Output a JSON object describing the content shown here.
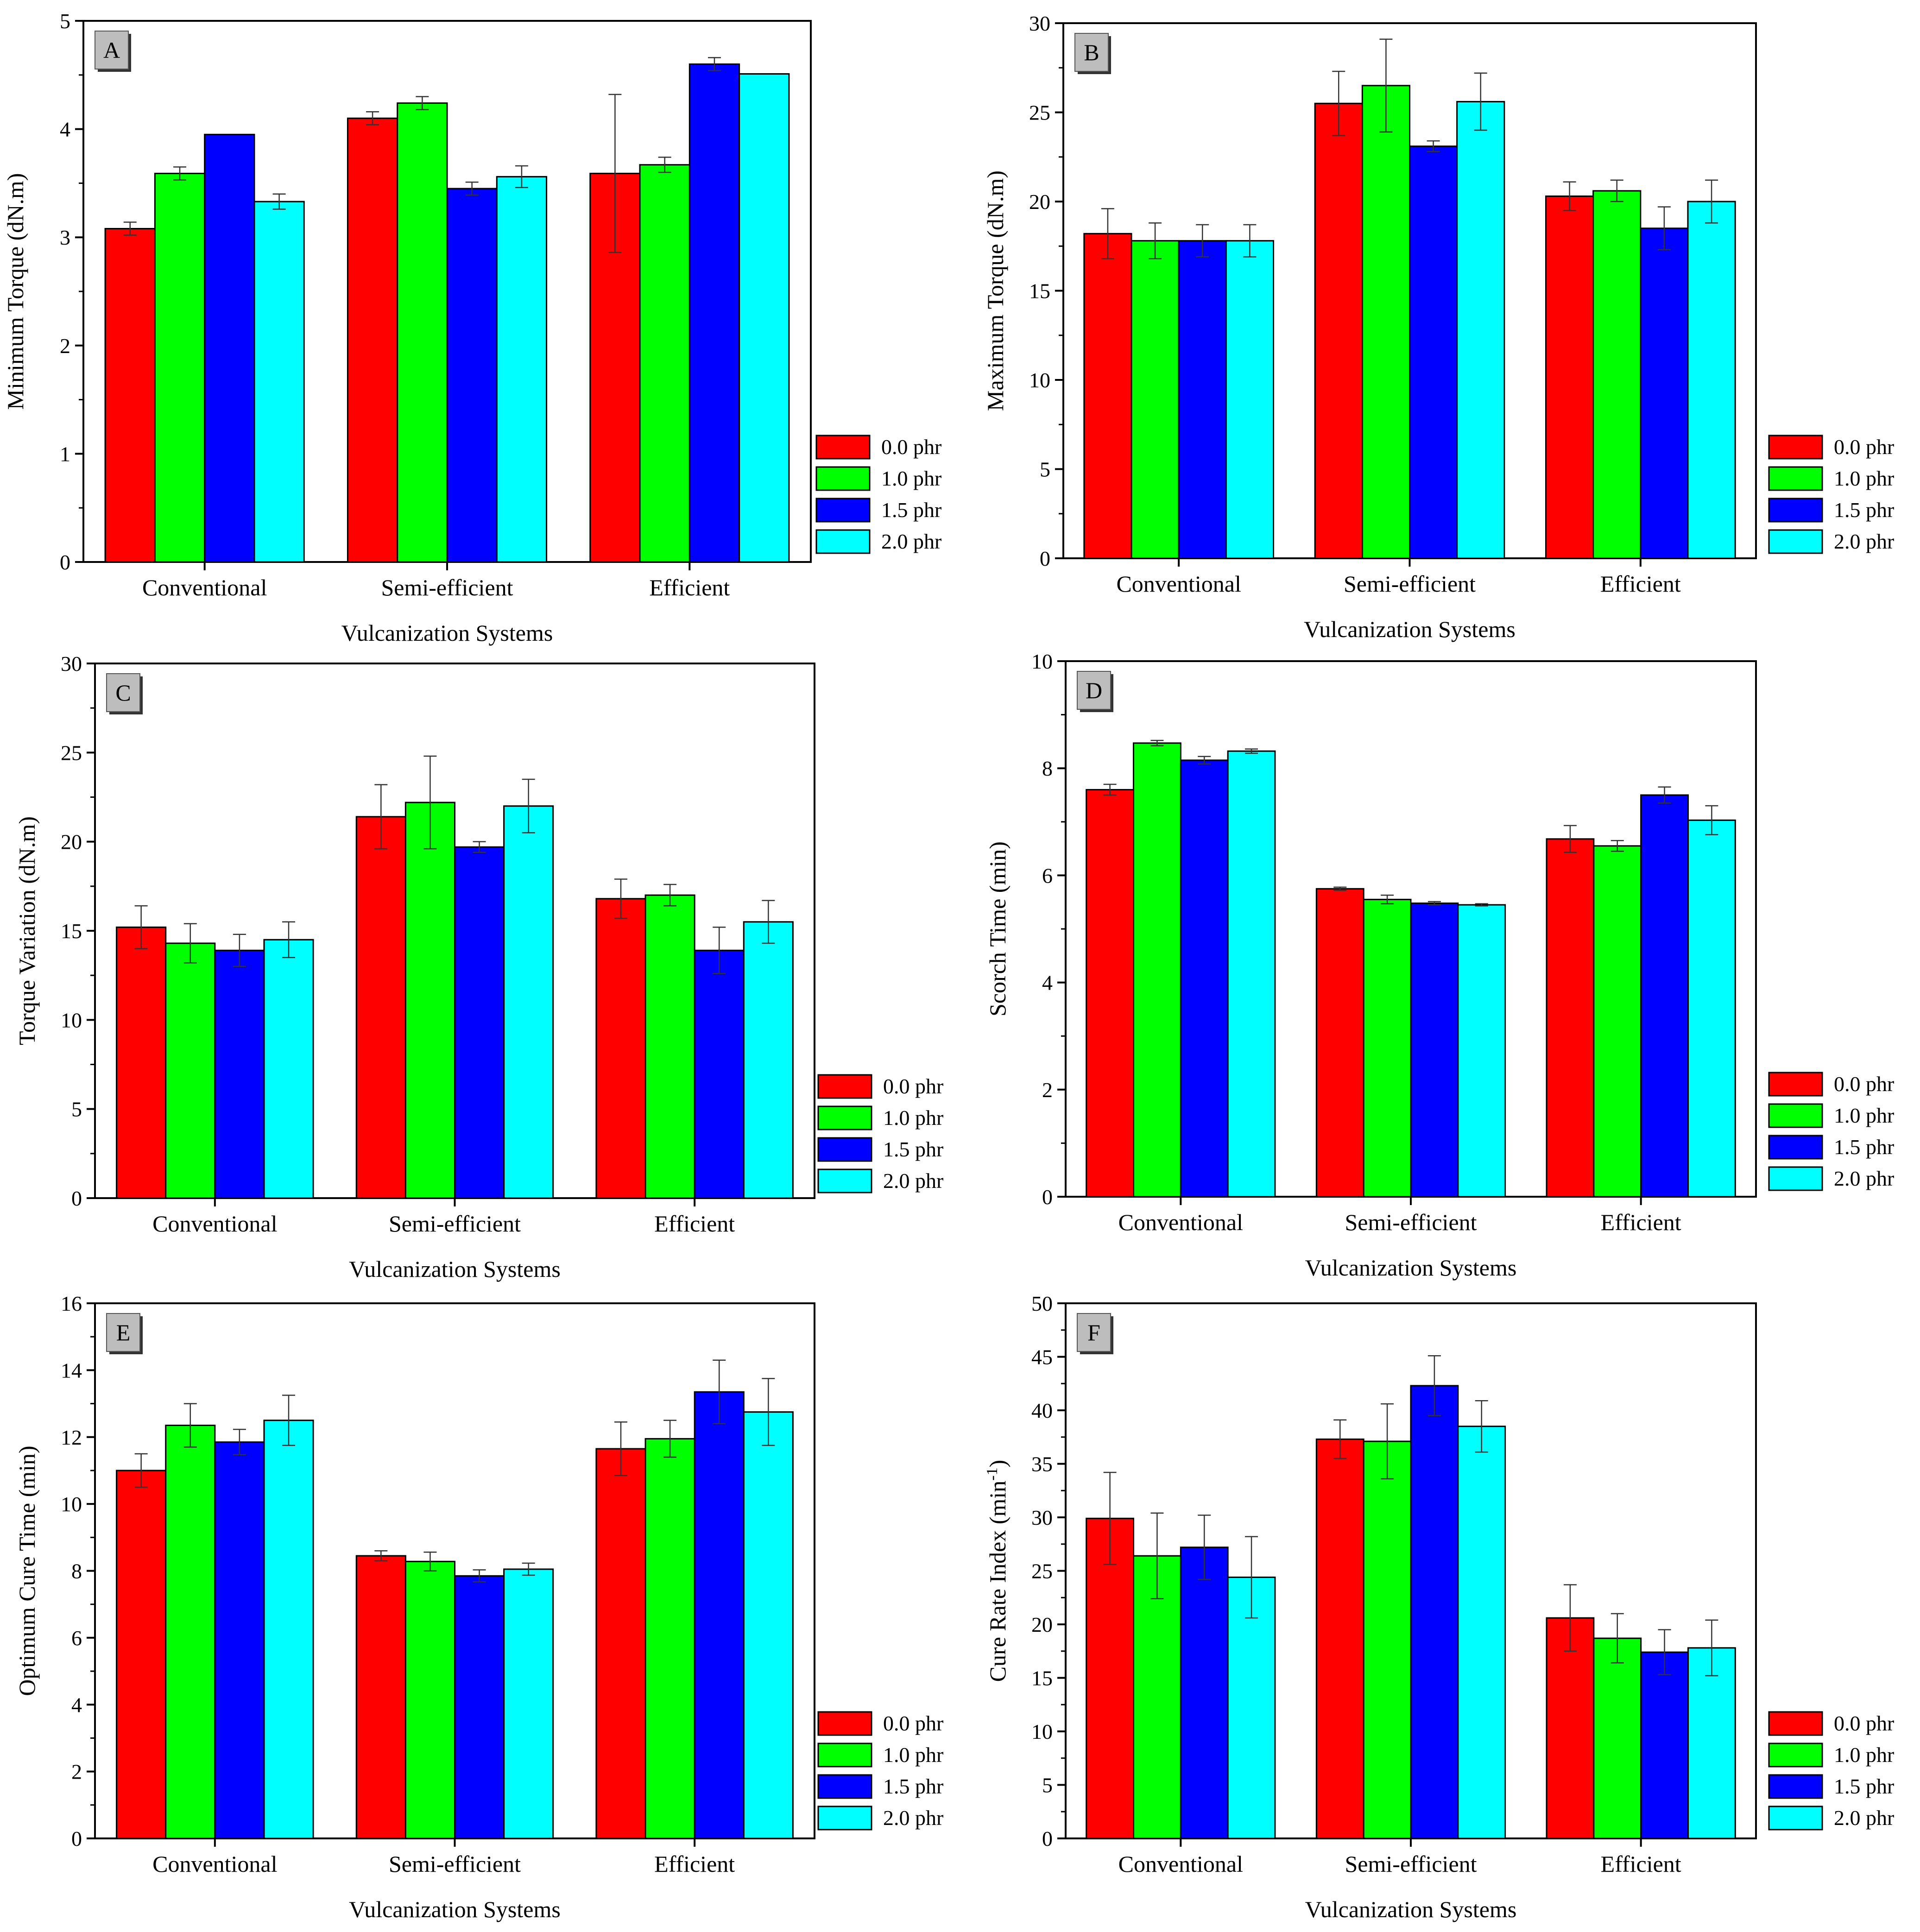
{
  "colors": {
    "0.0 phr": "#ff0000",
    "1.0 phr": "#00ff00",
    "1.5 phr": "#0000ff",
    "2.0 phr": "#00ffff"
  },
  "chart_data": [
    {
      "panel": "A",
      "type": "bar",
      "xlabel": "Vulcanization Systems",
      "ylabel": "Minimum Torque (dN.m)",
      "ylim": [
        0,
        5
      ],
      "yticks": [
        "0",
        "1",
        "2",
        "3",
        "4",
        "5"
      ],
      "categories": [
        "Conventional",
        "Semi-efficient",
        "Efficient"
      ],
      "legend": [
        "0.0 phr",
        "1.0 phr",
        "1.5 phr",
        "2.0 phr"
      ],
      "series": [
        {
          "name": "0.0 phr",
          "values": [
            3.08,
            4.1,
            3.59
          ],
          "errors": [
            0.06,
            0.06,
            0.73
          ]
        },
        {
          "name": "1.0 phr",
          "values": [
            3.59,
            4.24,
            3.67
          ],
          "errors": [
            0.06,
            0.06,
            0.07
          ]
        },
        {
          "name": "1.5 phr",
          "values": [
            3.95,
            3.45,
            4.6
          ],
          "errors": [
            0,
            0.06,
            0.06
          ]
        },
        {
          "name": "2.0 phr",
          "values": [
            3.33,
            3.56,
            4.51
          ],
          "errors": [
            0.07,
            0.1,
            0
          ]
        }
      ]
    },
    {
      "panel": "B",
      "type": "bar",
      "xlabel": "Vulcanization Systems",
      "ylabel": "Maximum Torque (dN.m)",
      "ylim": [
        0,
        30
      ],
      "yticks": [
        "0",
        "5",
        "10",
        "15",
        "20",
        "25",
        "30"
      ],
      "categories": [
        "Conventional",
        "Semi-efficient",
        "Efficient"
      ],
      "legend": [
        "0.0 phr",
        "1.0 phr",
        "1.5 phr",
        "2.0 phr"
      ],
      "series": [
        {
          "name": "0.0 phr",
          "values": [
            18.2,
            25.5,
            20.3
          ],
          "errors": [
            1.4,
            1.8,
            0.8
          ]
        },
        {
          "name": "1.0 phr",
          "values": [
            17.8,
            26.5,
            20.6
          ],
          "errors": [
            1.0,
            2.6,
            0.6
          ]
        },
        {
          "name": "1.5 phr",
          "values": [
            17.8,
            23.1,
            18.5
          ],
          "errors": [
            0.9,
            0.3,
            1.2
          ]
        },
        {
          "name": "2.0 phr",
          "values": [
            17.8,
            25.6,
            20.0
          ],
          "errors": [
            0.9,
            1.6,
            1.2
          ]
        }
      ]
    },
    {
      "panel": "C",
      "type": "bar",
      "xlabel": "Vulcanization Systems",
      "ylabel": "Torque Variation (dN.m)",
      "ylim": [
        0,
        30
      ],
      "yticks": [
        "0",
        "5",
        "10",
        "15",
        "20",
        "25",
        "30"
      ],
      "categories": [
        "Conventional",
        "Semi-efficient",
        "Efficient"
      ],
      "legend": [
        "0.0 phr",
        "1.0 phr",
        "1.5 phr",
        "2.0 phr"
      ],
      "series": [
        {
          "name": "0.0 phr",
          "values": [
            15.2,
            21.4,
            16.8
          ],
          "errors": [
            1.2,
            1.8,
            1.1
          ]
        },
        {
          "name": "1.0 phr",
          "values": [
            14.3,
            22.2,
            17.0
          ],
          "errors": [
            1.1,
            2.6,
            0.6
          ]
        },
        {
          "name": "1.5 phr",
          "values": [
            13.9,
            19.7,
            13.9
          ],
          "errors": [
            0.9,
            0.3,
            1.3
          ]
        },
        {
          "name": "2.0 phr",
          "values": [
            14.5,
            22.0,
            15.5
          ],
          "errors": [
            1.0,
            1.5,
            1.2
          ]
        }
      ]
    },
    {
      "panel": "D",
      "type": "bar",
      "xlabel": "Vulcanization Systems",
      "ylabel": "Scorch Time (min)",
      "ylim": [
        0,
        10
      ],
      "yticks": [
        "0",
        "2",
        "4",
        "6",
        "8",
        "10"
      ],
      "categories": [
        "Conventional",
        "Semi-efficient",
        "Efficient"
      ],
      "legend": [
        "0.0 phr",
        "1.0 phr",
        "1.5 phr",
        "2.0 phr"
      ],
      "series": [
        {
          "name": "0.0 phr",
          "values": [
            7.6,
            5.75,
            6.68
          ],
          "errors": [
            0.1,
            0.03,
            0.25
          ]
        },
        {
          "name": "1.0 phr",
          "values": [
            8.47,
            5.55,
            6.55
          ],
          "errors": [
            0.05,
            0.08,
            0.1
          ]
        },
        {
          "name": "1.5 phr",
          "values": [
            8.15,
            5.48,
            7.5
          ],
          "errors": [
            0.07,
            0.03,
            0.15
          ]
        },
        {
          "name": "2.0 phr",
          "values": [
            8.32,
            5.45,
            7.03
          ],
          "errors": [
            0.04,
            0.02,
            0.27
          ]
        }
      ]
    },
    {
      "panel": "E",
      "type": "bar",
      "xlabel": "Vulcanization Systems",
      "ylabel": "Optimum Cure Time (min)",
      "ylim": [
        0,
        16
      ],
      "yticks": [
        "0",
        "2",
        "4",
        "6",
        "8",
        "10",
        "12",
        "14",
        "16"
      ],
      "categories": [
        "Conventional",
        "Semi-efficient",
        "Efficient"
      ],
      "legend": [
        "0.0 phr",
        "1.0 phr",
        "1.5 phr",
        "2.0 phr"
      ],
      "series": [
        {
          "name": "0.0 phr",
          "values": [
            11.0,
            8.45,
            11.65
          ],
          "errors": [
            0.5,
            0.15,
            0.8
          ]
        },
        {
          "name": "1.0 phr",
          "values": [
            12.35,
            8.28,
            11.95
          ],
          "errors": [
            0.65,
            0.28,
            0.55
          ]
        },
        {
          "name": "1.5 phr",
          "values": [
            11.85,
            7.85,
            13.35
          ],
          "errors": [
            0.38,
            0.18,
            0.95
          ]
        },
        {
          "name": "2.0 phr",
          "values": [
            12.5,
            8.05,
            12.75
          ],
          "errors": [
            0.75,
            0.18,
            1.0
          ]
        }
      ]
    },
    {
      "panel": "F",
      "type": "bar",
      "xlabel": "Vulcanization Systems",
      "ylabel": "Cure Rate Index (min",
      "ylabel_superscript": "-1",
      "ylabel_tail": ")",
      "ylim": [
        0,
        50
      ],
      "yticks": [
        "0",
        "5",
        "10",
        "15",
        "20",
        "25",
        "30",
        "35",
        "40",
        "45",
        "50"
      ],
      "categories": [
        "Conventional",
        "Semi-efficient",
        "Efficient"
      ],
      "legend": [
        "0.0 phr",
        "1.0 phr",
        "1.5 phr",
        "2.0 phr"
      ],
      "series": [
        {
          "name": "0.0 phr",
          "values": [
            29.9,
            37.3,
            20.6
          ],
          "errors": [
            4.3,
            1.8,
            3.1
          ]
        },
        {
          "name": "1.0 phr",
          "values": [
            26.4,
            37.1,
            18.7
          ],
          "errors": [
            4.0,
            3.5,
            2.3
          ]
        },
        {
          "name": "1.5 phr",
          "values": [
            27.2,
            42.3,
            17.4
          ],
          "errors": [
            3.0,
            2.8,
            2.1
          ]
        },
        {
          "name": "2.0 phr",
          "values": [
            24.4,
            38.5,
            17.8
          ],
          "errors": [
            3.8,
            2.4,
            2.6
          ]
        }
      ]
    }
  ]
}
